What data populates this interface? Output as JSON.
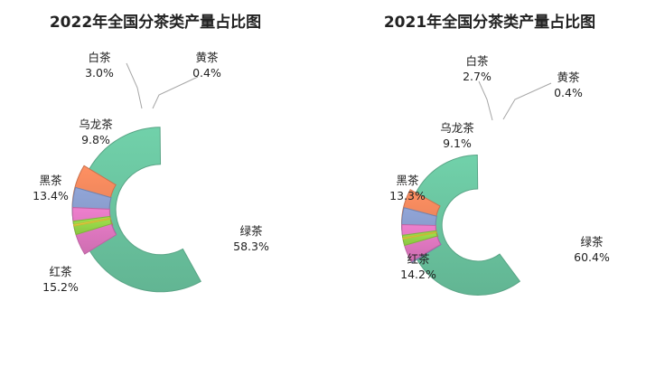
{
  "chart_data": [
    {
      "type": "pie",
      "title": "2022年全国分茶类产量占比图",
      "categories": [
        "绿茶",
        "红茶",
        "黑茶",
        "乌龙茶",
        "白茶",
        "黄茶"
      ],
      "values": [
        58.3,
        15.2,
        13.4,
        9.8,
        3.0,
        0.4
      ],
      "value_labels": [
        "58.3%",
        "15.2%",
        "13.4%",
        "9.8%",
        "3.0%",
        "0.4%"
      ],
      "colors": [
        "#6dc9a3",
        "#f58a5e",
        "#8b9fd0",
        "#e57ac5",
        "#9adb4a",
        "#f3df44"
      ],
      "donut": true,
      "exploded": true
    },
    {
      "type": "pie",
      "title": "2021年全国分茶类产量占比图",
      "categories": [
        "绿茶",
        "红茶",
        "黑茶",
        "乌龙茶",
        "白茶",
        "黄茶"
      ],
      "values": [
        60.4,
        14.2,
        13.3,
        9.1,
        2.7,
        0.4
      ],
      "value_labels": [
        "60.4%",
        "14.2%",
        "13.3%",
        "9.1%",
        "2.7%",
        "0.4%"
      ],
      "colors": [
        "#6dc9a3",
        "#f58a5e",
        "#8b9fd0",
        "#e57ac5",
        "#9adb4a",
        "#f3df44"
      ],
      "donut": true,
      "exploded": true
    }
  ]
}
